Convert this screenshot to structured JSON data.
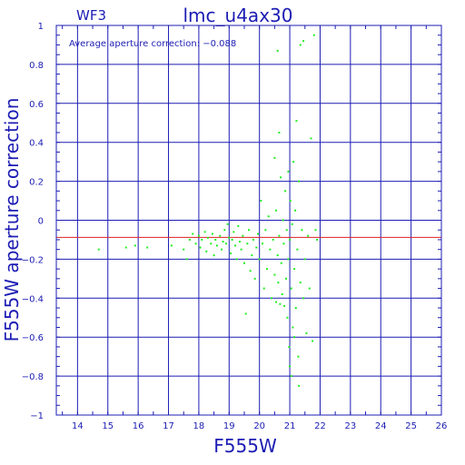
{
  "chart_data": {
    "type": "scatter",
    "panel_label": "WF3",
    "title": "lmc_u4ax30",
    "annotation": "Average aperture correction: −0.088",
    "xlabel": "F555W",
    "ylabel": "F555W aperture correction",
    "xlim": [
      13.3,
      26
    ],
    "ylim": [
      -1,
      1
    ],
    "x_ticks": [
      14,
      15,
      16,
      17,
      18,
      19,
      20,
      21,
      22,
      23,
      24,
      25,
      26
    ],
    "y_ticks": [
      -1,
      -0.8,
      -0.6,
      -0.4,
      -0.2,
      0,
      0.2,
      0.4,
      0.6,
      0.8,
      1
    ],
    "y_tick_labels": [
      "−1",
      "−0.8",
      "−0.6",
      "−0.4",
      "−0.2",
      "0",
      "0.2",
      "0.4",
      "0.6",
      "0.8",
      "1"
    ],
    "grid": true,
    "reference_line": {
      "y": -0.088,
      "color": "#dd2222"
    },
    "colors": {
      "axes": "#1c1cb4",
      "points": "#22ee22",
      "reference": "#dd2222"
    },
    "points": [
      [
        14.7,
        -0.15
      ],
      [
        15.6,
        -0.14
      ],
      [
        15.9,
        -0.13
      ],
      [
        16.3,
        -0.14
      ],
      [
        17.1,
        -0.13
      ],
      [
        17.5,
        -0.15
      ],
      [
        17.6,
        -0.2
      ],
      [
        17.7,
        -0.1
      ],
      [
        17.8,
        -0.07
      ],
      [
        17.9,
        -0.12
      ],
      [
        18.0,
        -0.08
      ],
      [
        18.05,
        -0.14
      ],
      [
        18.1,
        -0.1
      ],
      [
        18.2,
        -0.06
      ],
      [
        18.25,
        -0.16
      ],
      [
        18.3,
        -0.09
      ],
      [
        18.4,
        -0.12
      ],
      [
        18.45,
        -0.07
      ],
      [
        18.5,
        -0.18
      ],
      [
        18.55,
        -0.1
      ],
      [
        18.6,
        -0.13
      ],
      [
        18.7,
        -0.08
      ],
      [
        18.75,
        -0.15
      ],
      [
        18.8,
        -0.11
      ],
      [
        18.85,
        -0.05
      ],
      [
        18.9,
        -0.12
      ],
      [
        18.95,
        -0.02
      ],
      [
        19.0,
        -0.09
      ],
      [
        19.05,
        -0.17
      ],
      [
        19.1,
        -0.1
      ],
      [
        19.15,
        -0.06
      ],
      [
        19.2,
        -0.13
      ],
      [
        19.25,
        -0.2
      ],
      [
        19.3,
        -0.03
      ],
      [
        19.35,
        -0.11
      ],
      [
        19.4,
        -0.15
      ],
      [
        19.45,
        -0.08
      ],
      [
        19.5,
        -0.22
      ],
      [
        19.55,
        -0.48
      ],
      [
        19.6,
        -0.12
      ],
      [
        19.65,
        -0.05
      ],
      [
        19.7,
        -0.26
      ],
      [
        19.75,
        -0.18
      ],
      [
        19.8,
        -0.1
      ],
      [
        19.85,
        -0.3
      ],
      [
        19.9,
        -0.14
      ],
      [
        19.95,
        -0.07
      ],
      [
        20.0,
        -0.2
      ],
      [
        20.05,
        0.1
      ],
      [
        20.1,
        -0.12
      ],
      [
        20.15,
        -0.35
      ],
      [
        20.2,
        -0.05
      ],
      [
        20.25,
        -0.25
      ],
      [
        20.3,
        0.02
      ],
      [
        20.35,
        -0.15
      ],
      [
        20.4,
        -0.4
      ],
      [
        20.45,
        -0.1
      ],
      [
        20.5,
        -0.28
      ],
      [
        20.5,
        0.32
      ],
      [
        20.55,
        -0.42
      ],
      [
        20.55,
        0.05
      ],
      [
        20.6,
        -0.18
      ],
      [
        20.6,
        0.87
      ],
      [
        20.62,
        -0.32
      ],
      [
        20.65,
        0.45
      ],
      [
        20.65,
        -0.08
      ],
      [
        20.68,
        -0.43
      ],
      [
        20.7,
        0.22
      ],
      [
        20.72,
        -0.22
      ],
      [
        20.75,
        -0.38
      ],
      [
        20.78,
        0.0
      ],
      [
        20.8,
        -0.12
      ],
      [
        20.82,
        -0.44
      ],
      [
        20.85,
        0.15
      ],
      [
        20.88,
        -0.3
      ],
      [
        20.9,
        -0.05
      ],
      [
        20.92,
        -0.5
      ],
      [
        20.95,
        -0.2
      ],
      [
        20.95,
        0.25
      ],
      [
        20.98,
        -0.65
      ],
      [
        21.0,
        -0.1
      ],
      [
        21.0,
        -0.75
      ],
      [
        21.02,
        0.1
      ],
      [
        21.05,
        -0.35
      ],
      [
        21.05,
        -0.8
      ],
      [
        21.08,
        -0.02
      ],
      [
        21.1,
        -0.55
      ],
      [
        21.12,
        0.3
      ],
      [
        21.15,
        -0.25
      ],
      [
        21.15,
        -0.6
      ],
      [
        21.18,
        0.05
      ],
      [
        21.2,
        -0.45
      ],
      [
        21.22,
        0.51
      ],
      [
        21.25,
        -0.15
      ],
      [
        21.28,
        -0.7
      ],
      [
        21.3,
        0.2
      ],
      [
        21.3,
        -0.85
      ],
      [
        21.35,
        -0.32
      ],
      [
        21.35,
        0.9
      ],
      [
        21.4,
        -0.05
      ],
      [
        21.45,
        -0.4
      ],
      [
        21.45,
        0.92
      ],
      [
        21.5,
        -0.2
      ],
      [
        21.55,
        -0.58
      ],
      [
        21.6,
        -0.08
      ],
      [
        21.65,
        -0.35
      ],
      [
        21.7,
        0.42
      ],
      [
        21.75,
        -0.62
      ],
      [
        21.8,
        0.95
      ],
      [
        21.85,
        -0.05
      ],
      [
        21.9,
        -0.1
      ]
    ]
  }
}
